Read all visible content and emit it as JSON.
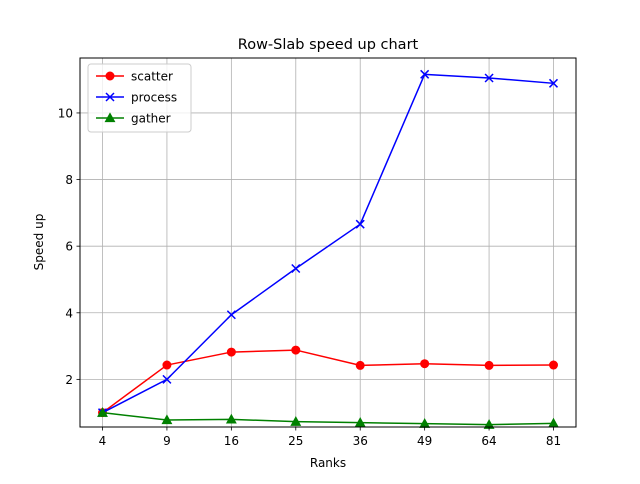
{
  "chart_data": {
    "type": "line",
    "title": "Row-Slab speed up chart",
    "xlabel": "Ranks",
    "ylabel": "Speed up",
    "categories": [
      "4",
      "9",
      "16",
      "25",
      "36",
      "49",
      "64",
      "81"
    ],
    "ylim": [
      0.57,
      11.65
    ],
    "yticks": [
      2,
      4,
      6,
      8,
      10
    ],
    "grid": true,
    "legend_position": "top-left",
    "series": [
      {
        "name": "scatter",
        "color": "#ff0000",
        "marker": "circle",
        "values": [
          1.0,
          2.43,
          2.82,
          2.88,
          2.42,
          2.47,
          2.42,
          2.43
        ]
      },
      {
        "name": "process",
        "color": "#0000ff",
        "marker": "x",
        "values": [
          1.0,
          2.0,
          3.94,
          5.33,
          6.66,
          11.16,
          11.05,
          10.89
        ]
      },
      {
        "name": "gather",
        "color": "#008000",
        "marker": "triangle",
        "values": [
          1.0,
          0.78,
          0.8,
          0.73,
          0.7,
          0.67,
          0.64,
          0.68
        ]
      }
    ]
  }
}
